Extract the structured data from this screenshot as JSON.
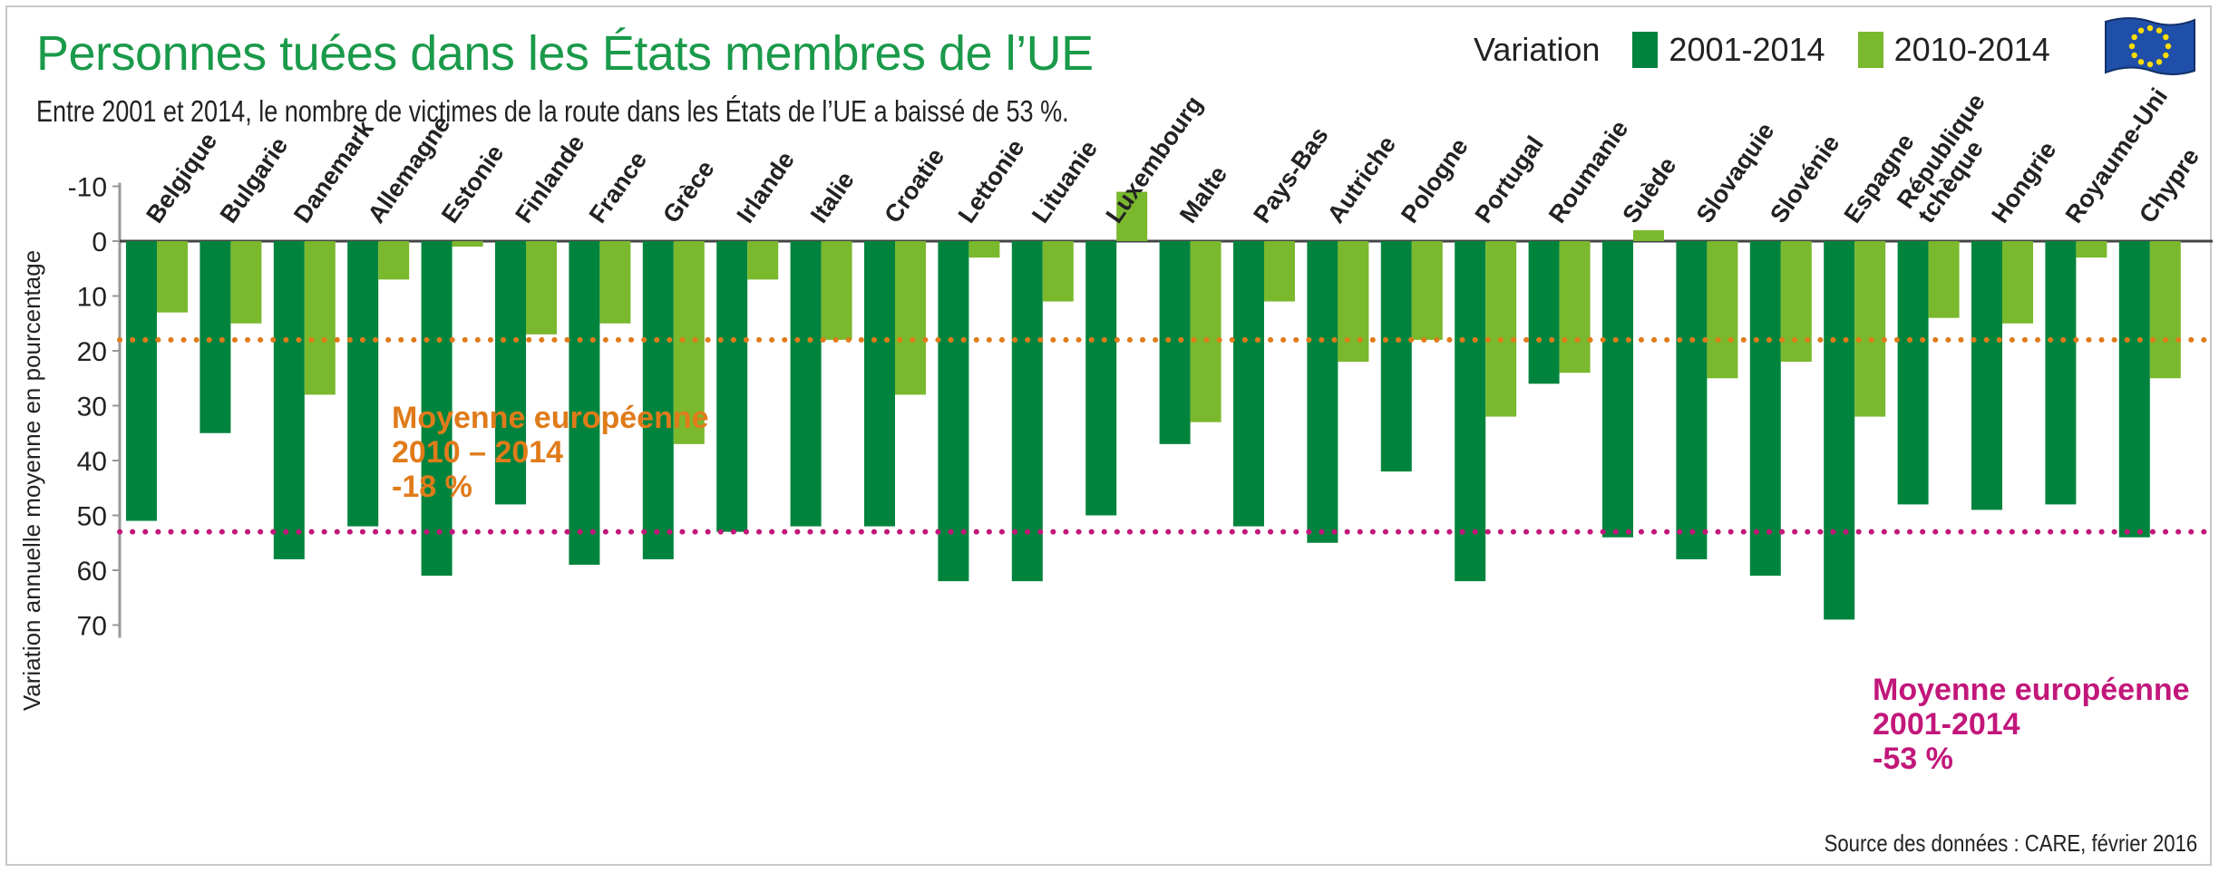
{
  "title": "Personnes tuées dans les États membres de l’UE",
  "subtitle": "Entre 2001 et 2014, le nombre de victimes de la route dans les États de l’UE a baissé de 53 %.",
  "source": "Source des données : CARE, février 2016",
  "colors": {
    "dark": "#00843d",
    "light": "#7ab82e",
    "orange": "#e07b1a",
    "magenta": "#c2177a",
    "title": "#1a9a4a"
  },
  "chart_data": {
    "type": "bar",
    "ylabel": "Variation annuelle moyenne en pourcentage",
    "ylim": [
      -10,
      70
    ],
    "yticks": [
      -10,
      0,
      10,
      20,
      30,
      40,
      50,
      60,
      70
    ],
    "y_inverted": true,
    "legend_title": "Variation",
    "legend_position": "top-right",
    "categories": [
      "Belgique",
      "Bulgarie",
      "Danemark",
      "Allemagne",
      "Estonie",
      "Finlande",
      "France",
      "Grèce",
      "Irlande",
      "Italie",
      "Croatie",
      "Lettonie",
      "Lituanie",
      "Luxembourg",
      "Malte",
      "Pays-Bas",
      "Autriche",
      "Pologne",
      "Portugal",
      "Roumanie",
      "Suède",
      "Slovaquie",
      "Slovénie",
      "Espagne",
      "République tchèque",
      "Hongrie",
      "Royaume-Uni",
      "Chypre"
    ],
    "series": [
      {
        "name": "2001-2014",
        "color": "#00843d",
        "values": [
          51,
          35,
          58,
          52,
          61,
          48,
          59,
          58,
          53,
          52,
          52,
          62,
          62,
          50,
          37,
          52,
          55,
          42,
          62,
          26,
          54,
          58,
          61,
          69,
          48,
          49,
          48,
          54
        ]
      },
      {
        "name": "2010-2014",
        "color": "#7ab82e",
        "values": [
          13,
          15,
          28,
          7,
          1,
          17,
          15,
          37,
          7,
          18,
          28,
          3,
          11,
          -9,
          33,
          11,
          22,
          18,
          32,
          24,
          -2,
          25,
          22,
          32,
          14,
          15,
          3,
          25
        ]
      }
    ],
    "reference_lines": [
      {
        "value": 18,
        "color": "#e07b1a",
        "label": [
          "Moyenne européenne",
          "2010 – 2014",
          "-18 %"
        ]
      },
      {
        "value": 53,
        "color": "#c2177a",
        "label": [
          "Moyenne européenne",
          "2001-2014",
          "-53 %"
        ]
      }
    ]
  }
}
